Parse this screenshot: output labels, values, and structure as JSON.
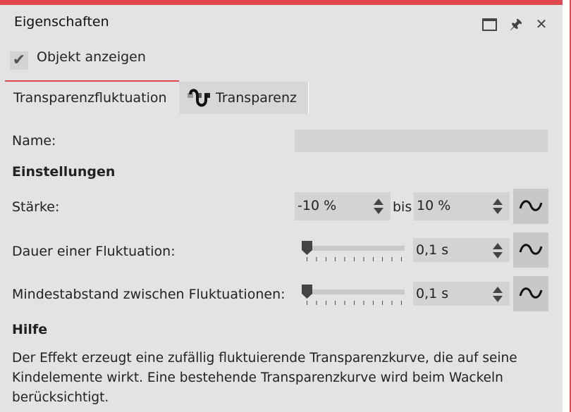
{
  "window": {
    "title": "Eigenschaften",
    "buttons": [
      "maximize",
      "pin",
      "close"
    ]
  },
  "show_object": {
    "label": "Objekt anzeigen",
    "checked": true
  },
  "tabs": [
    {
      "label": "Transparenzfluktuation",
      "active": true
    },
    {
      "label": "Transparenz",
      "icon": "transparency-curve-icon"
    }
  ],
  "name": {
    "label": "Name:",
    "value": ""
  },
  "settings": {
    "heading": "Einstellungen",
    "strength": {
      "label": "Stärke:",
      "from": "-10 %",
      "bis": "bis",
      "to": "10 %"
    },
    "duration": {
      "label": "Dauer einer Fluktuation:",
      "value": "0,1 s",
      "slider": 0
    },
    "min_gap": {
      "label": "Mindestabstand zwischen Fluktuationen:",
      "value": "0,1 s",
      "slider": 0
    }
  },
  "help": {
    "heading": "Hilfe",
    "text": "Der Effekt erzeugt eine zufällig fluktuierende Transparenzkurve, die auf seine Kindelemente wirkt. Eine bestehende Transparenzkurve wird beim Wackeln berücksichtigt."
  },
  "colors": {
    "accent": "#e0484d",
    "panel": "#e3e3e3"
  }
}
